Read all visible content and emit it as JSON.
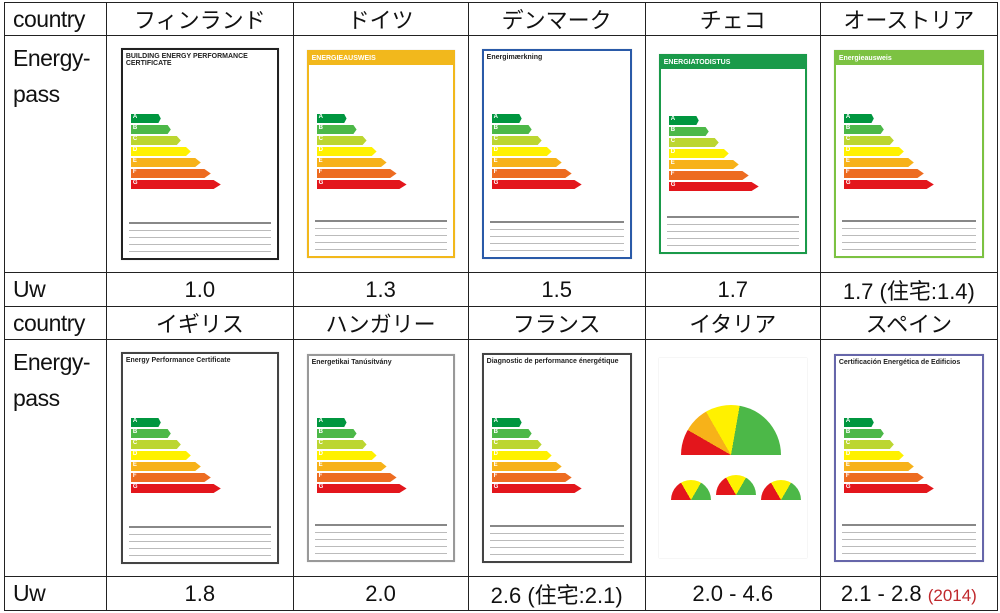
{
  "row_label_country": "country",
  "row_label_energy": "Energy-\npass",
  "row_label_uw": "Uw",
  "rows": [
    {
      "countries": [
        "フィンランド",
        "ドイツ",
        "デンマーク",
        "チェコ",
        "オーストリア"
      ],
      "uw": [
        "1.0",
        "1.3",
        "1.5",
        "1.7",
        "1.7 (住宅:1.4)"
      ],
      "certs": [
        {
          "title": "BUILDING ENERGY PERFORMANCE CERTIFICATE",
          "frame": "#222",
          "head": "#fff"
        },
        {
          "title": "ENERGIEAUSWEIS",
          "frame": "#f2b81c",
          "head": "#f2b81c"
        },
        {
          "title": "Energimærkning",
          "frame": "#2a5aa8",
          "head": "#fff"
        },
        {
          "title": "ENERGIATODISTUS",
          "frame": "#1a9a4a",
          "head": "#1a9a4a"
        },
        {
          "title": "Energieausweis",
          "frame": "#7cc242",
          "head": "#7cc242"
        }
      ]
    },
    {
      "countries": [
        "イギリス",
        "ハンガリー",
        "フランス",
        "イタリア",
        "スペイン"
      ],
      "uw": [
        "1.8",
        "2.0",
        "2.6 (住宅:2.1)",
        "2.0 - 4.6",
        "2.1 - 2.8"
      ],
      "uw_note": "(2014)",
      "certs": [
        {
          "title": "Energy Performance Certificate",
          "frame": "#444",
          "head": "#fff"
        },
        {
          "title": "Energetikai Tanúsítvány",
          "frame": "#999",
          "head": "#fff"
        },
        {
          "title": "Diagnostic de performance énergétique",
          "frame": "#444",
          "head": "#fff"
        },
        {
          "title": "",
          "frame": "#fff",
          "head": "#fff",
          "gauges": true
        },
        {
          "title": "Certificación Energética de Edificios",
          "frame": "#66a",
          "head": "#fff"
        }
      ]
    }
  ],
  "colors": {
    "band": [
      "#00963f",
      "#4cb848",
      "#bcd631",
      "#fff100",
      "#f7b219",
      "#ed6c21",
      "#e3161c"
    ],
    "note_red": "#c0282c"
  }
}
